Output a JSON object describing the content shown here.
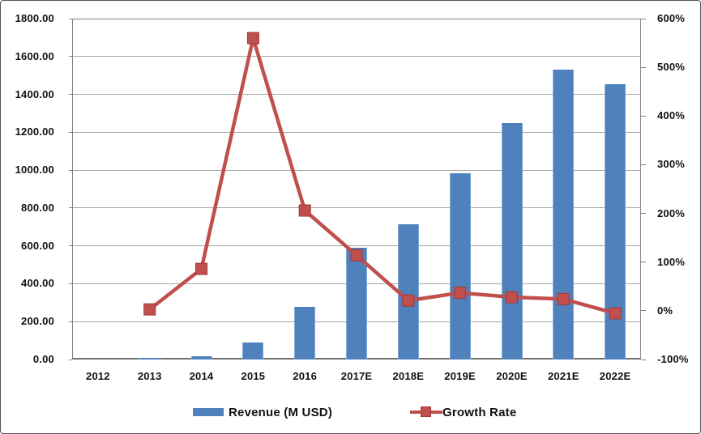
{
  "chart_data": {
    "type": "bar",
    "title": "",
    "categories": [
      "2012",
      "2013",
      "2014",
      "2015",
      "2016",
      "2017E",
      "2018E",
      "2019E",
      "2020E",
      "2021E",
      "2022E"
    ],
    "series": [
      {
        "name": "Revenue (M USD)",
        "kind": "bar",
        "axis": "left",
        "values": [
          0,
          10,
          17,
          92,
          280,
          590,
          715,
          985,
          1250,
          1530,
          1455
        ]
      },
      {
        "name": "Growth Rate",
        "kind": "line",
        "axis": "right",
        "values": [
          null,
          3,
          86,
          560,
          206,
          114,
          21,
          37,
          28,
          24,
          -5
        ]
      }
    ],
    "left_axis": {
      "min": 0,
      "max": 1800,
      "step": 200,
      "tick_labels": [
        "0.00",
        "200.00",
        "400.00",
        "600.00",
        "800.00",
        "1000.00",
        "1200.00",
        "1400.00",
        "1600.00",
        "1800.00"
      ]
    },
    "right_axis": {
      "min": -100,
      "max": 600,
      "step": 100,
      "tick_labels": [
        "-100%",
        "0%",
        "100%",
        "200%",
        "300%",
        "400%",
        "500%",
        "600%"
      ]
    },
    "grid": true,
    "legend_position": "bottom"
  },
  "colors": {
    "bar": "#4f81bd",
    "line": "#c0504d",
    "line_marker_edge": "#9c3a38",
    "gridline": "#a6a6a6",
    "axis": "#808080",
    "text": "#111111"
  }
}
